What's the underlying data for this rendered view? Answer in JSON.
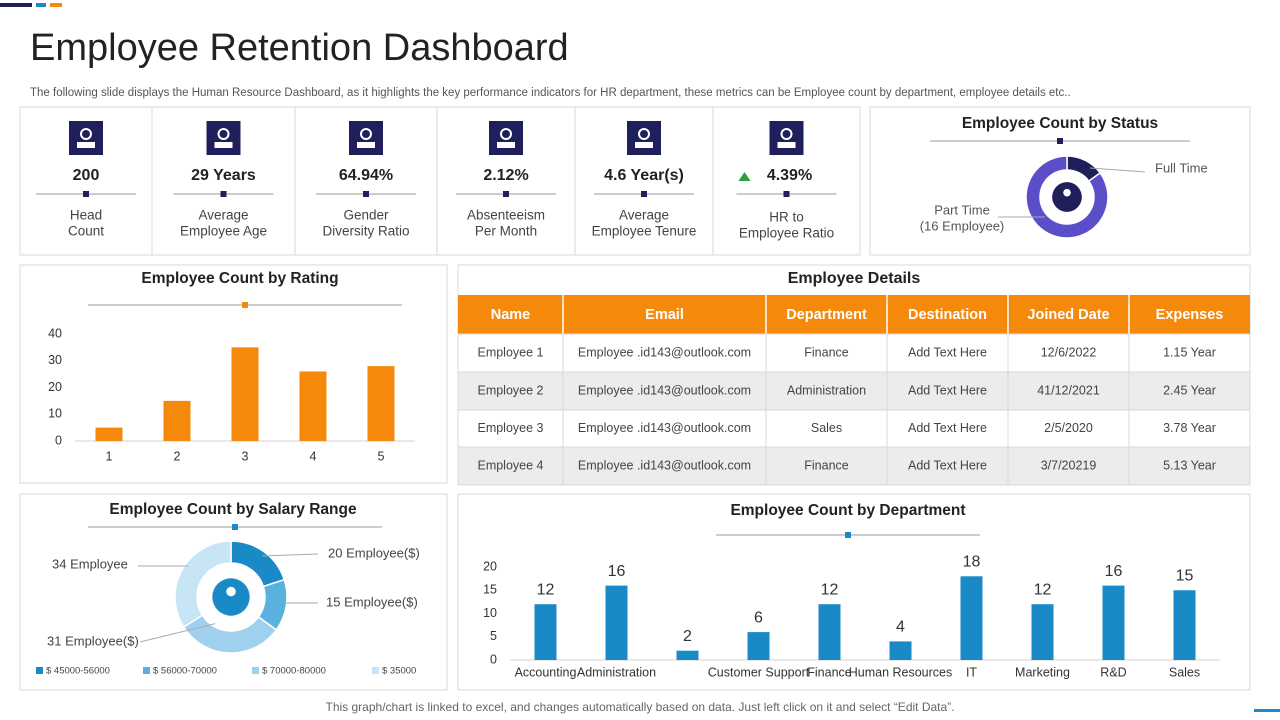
{
  "title": "Employee Retention Dashboard",
  "subtitle": "The following slide displays the Human Resource Dashboard, as it highlights the key performance indicators for HR department, these metrics can be Employee count by department, employee details etc..",
  "kpis": [
    {
      "value": "200",
      "label": [
        "Head",
        "Count"
      ]
    },
    {
      "value": "29 Years",
      "label": [
        "Average",
        "Employee Age"
      ]
    },
    {
      "value": "64.94%",
      "label": [
        "Gender",
        "Diversity  Ratio"
      ]
    },
    {
      "value": "2.12%",
      "label": [
        "Absenteeism",
        "Per Month"
      ]
    },
    {
      "value": "4.6 Year(s)",
      "label": [
        "Average",
        "Employee Tenure"
      ]
    },
    {
      "value": "4.39%",
      "label": [
        "HR to",
        "Employee Ratio"
      ]
    }
  ],
  "table": {
    "title": "Employee Details",
    "headers": [
      "Name",
      "Email",
      "Department",
      "Destination",
      "Joined Date",
      "Expenses"
    ],
    "rows": [
      [
        "Employee 1",
        "Employee .id143@outlook.com",
        "Finance",
        "Add Text Here",
        "12/6/2022",
        "1.15 Year"
      ],
      [
        "Employee 2",
        "Employee .id143@outlook.com",
        "Administration",
        "Add Text Here",
        "41/12/2021",
        "2.45 Year"
      ],
      [
        "Employee 3",
        "Employee .id143@outlook.com",
        "Sales",
        "Add Text Here",
        "2/5/2020",
        "3.78 Year"
      ],
      [
        "Employee 4",
        "Employee .id143@outlook.com",
        "Finance",
        "Add Text Here",
        "3/7/20219",
        "5.13 Year"
      ]
    ]
  },
  "footer": "This graph/chart is linked to excel,  and changes automatically based on data. Just left click on it and select “Edit Data”.",
  "chart_data": [
    {
      "type": "pie",
      "title": "Employee Count by Status",
      "categories": [
        [
          "Full Time"
        ],
        [
          "Part Time",
          "(16 Employee)"
        ]
      ],
      "values": [
        15,
        85
      ],
      "colors": [
        "#1f1f5c",
        "#5a4fc8"
      ]
    },
    {
      "type": "bar",
      "title": "Employee Count by Rating",
      "categories": [
        "1",
        "2",
        "3",
        "4",
        "5"
      ],
      "values": [
        5,
        15,
        35,
        26,
        28
      ],
      "color": "#f5890c",
      "ylim": [
        0,
        40
      ],
      "yticks": [
        0,
        10,
        20,
        30,
        40
      ]
    },
    {
      "type": "pie",
      "title": "Employee Count by Salary Range",
      "categories": [
        "$ 45000-56000",
        "$ 56000-70000",
        "$ 70000-80000",
        "$ 35000"
      ],
      "values": [
        20,
        15,
        31,
        34
      ],
      "value_labels": [
        "20 Employee($)",
        "15 Employee($)",
        "31 Employee($)",
        "34 Employee"
      ],
      "colors": [
        "#1a8ac6",
        "#5bb1de",
        "#9fd0ee",
        "#c8e5f6"
      ]
    },
    {
      "type": "bar",
      "title": "Employee Count by Department",
      "categories": [
        "Accounting",
        "Administration",
        "",
        "Customer Support",
        "Finance",
        "Human Resources",
        "IT",
        "Marketing",
        "R&D",
        "Sales"
      ],
      "values": [
        12,
        16,
        2,
        6,
        12,
        4,
        18,
        12,
        16,
        15
      ],
      "color": "#1a8ac6",
      "ylim": [
        0,
        20
      ],
      "yticks": [
        0,
        5,
        10,
        15,
        20
      ],
      "data_labels": true
    }
  ]
}
